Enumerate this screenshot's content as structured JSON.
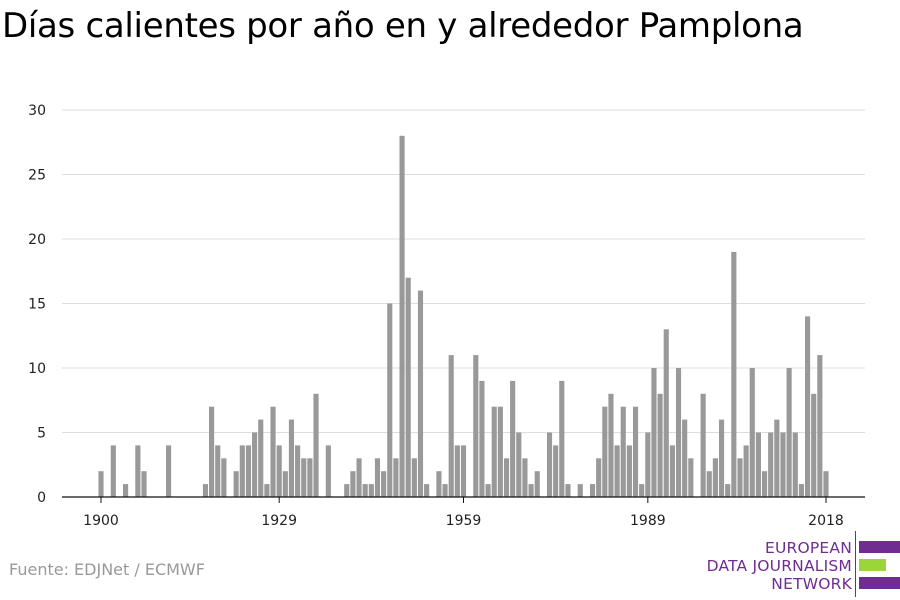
{
  "chart_data": {
    "type": "bar",
    "title": "Días calientes por año en y alrededor Pamplona",
    "xlabel": "",
    "ylabel": "",
    "ylim": [
      0,
      30
    ],
    "yticks": [
      0,
      5,
      10,
      15,
      20,
      25,
      30
    ],
    "xticks": [
      1900,
      1929,
      1959,
      1989,
      2018
    ],
    "x": [
      1900,
      1901,
      1902,
      1903,
      1904,
      1905,
      1906,
      1907,
      1908,
      1909,
      1910,
      1911,
      1912,
      1913,
      1914,
      1915,
      1916,
      1917,
      1918,
      1919,
      1920,
      1921,
      1922,
      1923,
      1924,
      1925,
      1926,
      1927,
      1928,
      1929,
      1930,
      1931,
      1932,
      1933,
      1934,
      1935,
      1936,
      1937,
      1938,
      1939,
      1940,
      1941,
      1942,
      1943,
      1944,
      1945,
      1946,
      1947,
      1948,
      1949,
      1950,
      1951,
      1952,
      1953,
      1954,
      1955,
      1956,
      1957,
      1958,
      1959,
      1960,
      1961,
      1962,
      1963,
      1964,
      1965,
      1966,
      1967,
      1968,
      1969,
      1970,
      1971,
      1972,
      1973,
      1974,
      1975,
      1976,
      1977,
      1978,
      1979,
      1980,
      1981,
      1982,
      1983,
      1984,
      1985,
      1986,
      1987,
      1988,
      1989,
      1990,
      1991,
      1992,
      1993,
      1994,
      1995,
      1996,
      1997,
      1998,
      1999,
      2000,
      2001,
      2002,
      2003,
      2004,
      2005,
      2006,
      2007,
      2008,
      2009,
      2010,
      2011,
      2012,
      2013,
      2014,
      2015,
      2016,
      2017,
      2018
    ],
    "values": [
      2,
      0,
      4,
      0,
      1,
      0,
      4,
      2,
      0,
      0,
      0,
      4,
      0,
      0,
      0,
      0,
      0,
      1,
      7,
      4,
      3,
      0,
      2,
      4,
      4,
      5,
      6,
      1,
      7,
      4,
      2,
      6,
      4,
      3,
      3,
      8,
      0,
      4,
      0,
      0,
      1,
      2,
      3,
      1,
      1,
      3,
      2,
      15,
      3,
      28,
      17,
      3,
      16,
      1,
      0,
      2,
      1,
      11,
      4,
      4,
      0,
      11,
      9,
      1,
      7,
      7,
      3,
      9,
      5,
      3,
      1,
      2,
      0,
      5,
      4,
      9,
      1,
      0,
      1,
      0,
      1,
      3,
      7,
      8,
      4,
      7,
      4,
      7,
      1,
      5,
      10,
      8,
      13,
      4,
      10,
      6,
      3,
      0,
      8,
      2,
      3,
      6,
      1,
      19,
      3,
      4,
      10,
      5,
      2,
      5,
      6,
      5,
      10,
      5,
      1,
      14,
      8,
      11,
      2
    ],
    "bar_color": "#999999",
    "grid": true
  },
  "footer": {
    "source": "Fuente: EDJNet / ECMWF"
  },
  "logo": {
    "line1": "EUROPEAN",
    "line2": "DATA JOURNALISM",
    "line3": "NETWORK",
    "color_purple": "#6f2d91",
    "color_green": "#9bd53a"
  }
}
